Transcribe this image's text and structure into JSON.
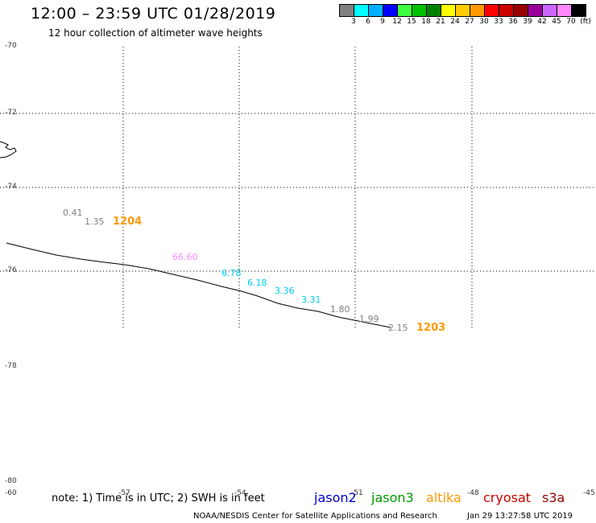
{
  "header": {
    "title": "12:00 – 23:59 UTC 01/28/2019",
    "subtitle": "12 hour collection of altimeter wave heights"
  },
  "colorbar": {
    "colors": [
      "#808080",
      "#00ffff",
      "#00b0ff",
      "#0000ff",
      "#40ff40",
      "#00c000",
      "#008000",
      "#ffff00",
      "#ffcc00",
      "#ff9900",
      "#ff0000",
      "#cc0000",
      "#990000",
      "#990099",
      "#cc66ff",
      "#ff88ff",
      "#000000"
    ],
    "labels": [
      "3",
      "6",
      "9",
      "12",
      "15",
      "18",
      "21",
      "24",
      "27",
      "30",
      "33",
      "36",
      "39",
      "42",
      "45",
      "70",
      "(ft)"
    ]
  },
  "axes": {
    "lat_labels": [
      "-70",
      "-72",
      "-74",
      "-76",
      "-78",
      "-80"
    ],
    "lon_labels": [
      "-57",
      "-54",
      "-51",
      "-48",
      "-45"
    ],
    "bottom_left_label": "-60"
  },
  "observations": [
    {
      "value": "0.41",
      "color": "#808080"
    },
    {
      "value": "1.35",
      "color": "#808080"
    },
    {
      "value": "66.60",
      "color": "#ff88ff"
    },
    {
      "value": "6.78",
      "color": "#00ccee"
    },
    {
      "value": "6.18",
      "color": "#00ccee"
    },
    {
      "value": "3.36",
      "color": "#00ccee"
    },
    {
      "value": "3.31",
      "color": "#00ccee"
    },
    {
      "value": "1.80",
      "color": "#808080"
    },
    {
      "value": "1.99",
      "color": "#808080"
    },
    {
      "value": "2.15",
      "color": "#808080"
    }
  ],
  "pass_times": [
    "1204",
    "1203"
  ],
  "legend": {
    "note": "note: 1) Time is in UTC; 2) SWH is in feet",
    "satellites": [
      {
        "name": "jason2",
        "color": "#0000cc"
      },
      {
        "name": "jason3",
        "color": "#009900"
      },
      {
        "name": "altika",
        "color": "#ff9900"
      },
      {
        "name": "cryosat",
        "color": "#cc0000"
      },
      {
        "name": "s3a",
        "color": "#990000"
      }
    ]
  },
  "footer": {
    "credit": "NOAA/NESDIS Center for Satellite Applications and Research",
    "timestamp": "Jan 29 13:27:58 UTC 2019"
  }
}
